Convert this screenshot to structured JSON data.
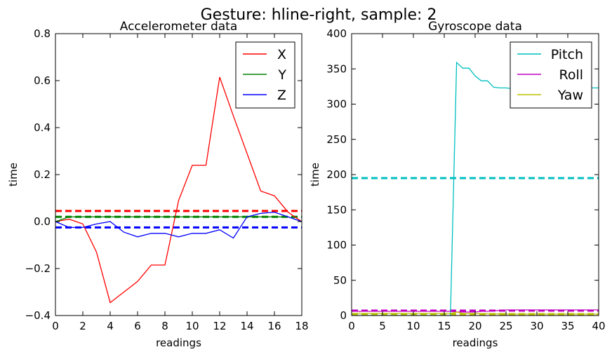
{
  "figure": {
    "title": "Gesture: hline-right, sample: 2"
  },
  "chart_data": [
    {
      "type": "line",
      "title": "Accelerometer data",
      "xlabel": "readings",
      "ylabel": "time",
      "xlim": [
        0,
        18
      ],
      "ylim": [
        -0.4,
        0.8
      ],
      "xticks": [
        0,
        2,
        4,
        6,
        8,
        10,
        12,
        14,
        16,
        18
      ],
      "yticks": [
        -0.4,
        -0.2,
        0.0,
        0.2,
        0.4,
        0.6,
        0.8
      ],
      "ytick_labels": [
        "−0.4",
        "−0.2",
        "0.0",
        "0.2",
        "0.4",
        "0.6",
        "0.8"
      ],
      "legend": {
        "position": "top-right"
      },
      "series": [
        {
          "name": "X",
          "color": "#ff0000",
          "x": [
            0,
            1,
            2,
            3,
            4,
            5,
            6,
            7,
            8,
            9,
            10,
            11,
            12,
            13,
            14,
            15,
            16,
            17,
            18
          ],
          "values": [
            0.0,
            0.01,
            -0.01,
            -0.13,
            -0.345,
            -0.3,
            -0.255,
            -0.185,
            -0.185,
            0.09,
            0.24,
            0.24,
            0.615,
            0.45,
            0.29,
            0.13,
            0.11,
            0.04,
            0.0
          ]
        },
        {
          "name": "Y",
          "color": "#008000",
          "x": [
            0,
            1,
            2,
            3,
            4,
            5,
            6,
            7,
            8,
            9,
            10,
            11,
            12,
            13,
            14,
            15,
            16,
            17,
            18
          ],
          "values": [
            0.0,
            0.02,
            0.02,
            0.02,
            0.02,
            0.02,
            0.02,
            0.02,
            0.02,
            0.02,
            0.02,
            0.02,
            0.02,
            0.02,
            0.02,
            0.02,
            0.02,
            0.02,
            0.0
          ]
        },
        {
          "name": "Z",
          "color": "#0000ff",
          "x": [
            0,
            1,
            2,
            3,
            4,
            5,
            6,
            7,
            8,
            9,
            10,
            11,
            12,
            13,
            14,
            15,
            16,
            17,
            18
          ],
          "values": [
            0.0,
            -0.025,
            -0.025,
            -0.01,
            0.0,
            -0.045,
            -0.065,
            -0.05,
            -0.05,
            -0.065,
            -0.05,
            -0.05,
            -0.035,
            -0.07,
            0.02,
            0.035,
            0.04,
            0.02,
            0.0
          ]
        }
      ],
      "hlines": [
        {
          "value": 0.045,
          "color": "#ff0000"
        },
        {
          "value": 0.02,
          "color": "#008000"
        },
        {
          "value": -0.025,
          "color": "#0000ff"
        }
      ]
    },
    {
      "type": "line",
      "title": "Gyroscope data",
      "xlabel": "readings",
      "ylabel": "time",
      "xlim": [
        0,
        40
      ],
      "ylim": [
        0,
        400
      ],
      "xticks": [
        0,
        5,
        10,
        15,
        20,
        25,
        30,
        35,
        40
      ],
      "yticks": [
        0,
        50,
        100,
        150,
        200,
        250,
        300,
        350,
        400
      ],
      "ytick_labels": [
        "0",
        "50",
        "100",
        "150",
        "200",
        "250",
        "300",
        "350",
        "400"
      ],
      "legend": {
        "position": "top-right"
      },
      "series": [
        {
          "name": "Pitch",
          "color": "#00bfbf",
          "x": [
            0,
            16,
            17,
            18,
            19,
            20,
            21,
            22,
            23,
            24,
            25,
            26,
            27,
            28,
            29,
            30,
            31,
            32,
            33,
            34,
            35,
            36,
            37,
            38,
            39,
            40
          ],
          "values": [
            0,
            0,
            359,
            351,
            351,
            340,
            333,
            333,
            324,
            323,
            323,
            322,
            323,
            323,
            323,
            323,
            323,
            323,
            323,
            323,
            323,
            323,
            323,
            323,
            323,
            323
          ]
        },
        {
          "name": "Roll",
          "color": "#bf00bf",
          "x": [
            0,
            5,
            10,
            15,
            16,
            17,
            18,
            19,
            20,
            21,
            22,
            23,
            24,
            25,
            26,
            27,
            28,
            29,
            30,
            31,
            32,
            33,
            34,
            35,
            36,
            37,
            38,
            39,
            40
          ],
          "values": [
            6,
            6,
            6,
            6,
            6,
            5,
            5,
            5,
            5,
            6,
            6,
            7,
            7,
            8,
            8,
            8,
            8,
            8,
            8,
            8,
            8,
            8,
            8,
            8,
            8,
            8,
            8,
            8,
            8
          ]
        },
        {
          "name": "Yaw",
          "color": "#bfbf00",
          "x": [
            0,
            5,
            10,
            15,
            16,
            17,
            18,
            20,
            25,
            30,
            35,
            40
          ],
          "values": [
            3,
            3,
            3,
            3,
            3,
            5,
            3,
            3,
            2,
            2,
            2,
            2
          ]
        }
      ],
      "hlines": [
        {
          "value": 195,
          "color": "#00bfbf"
        },
        {
          "value": 7,
          "color": "#bf00bf"
        },
        {
          "value": 2,
          "color": "#bfbf00"
        }
      ]
    }
  ]
}
